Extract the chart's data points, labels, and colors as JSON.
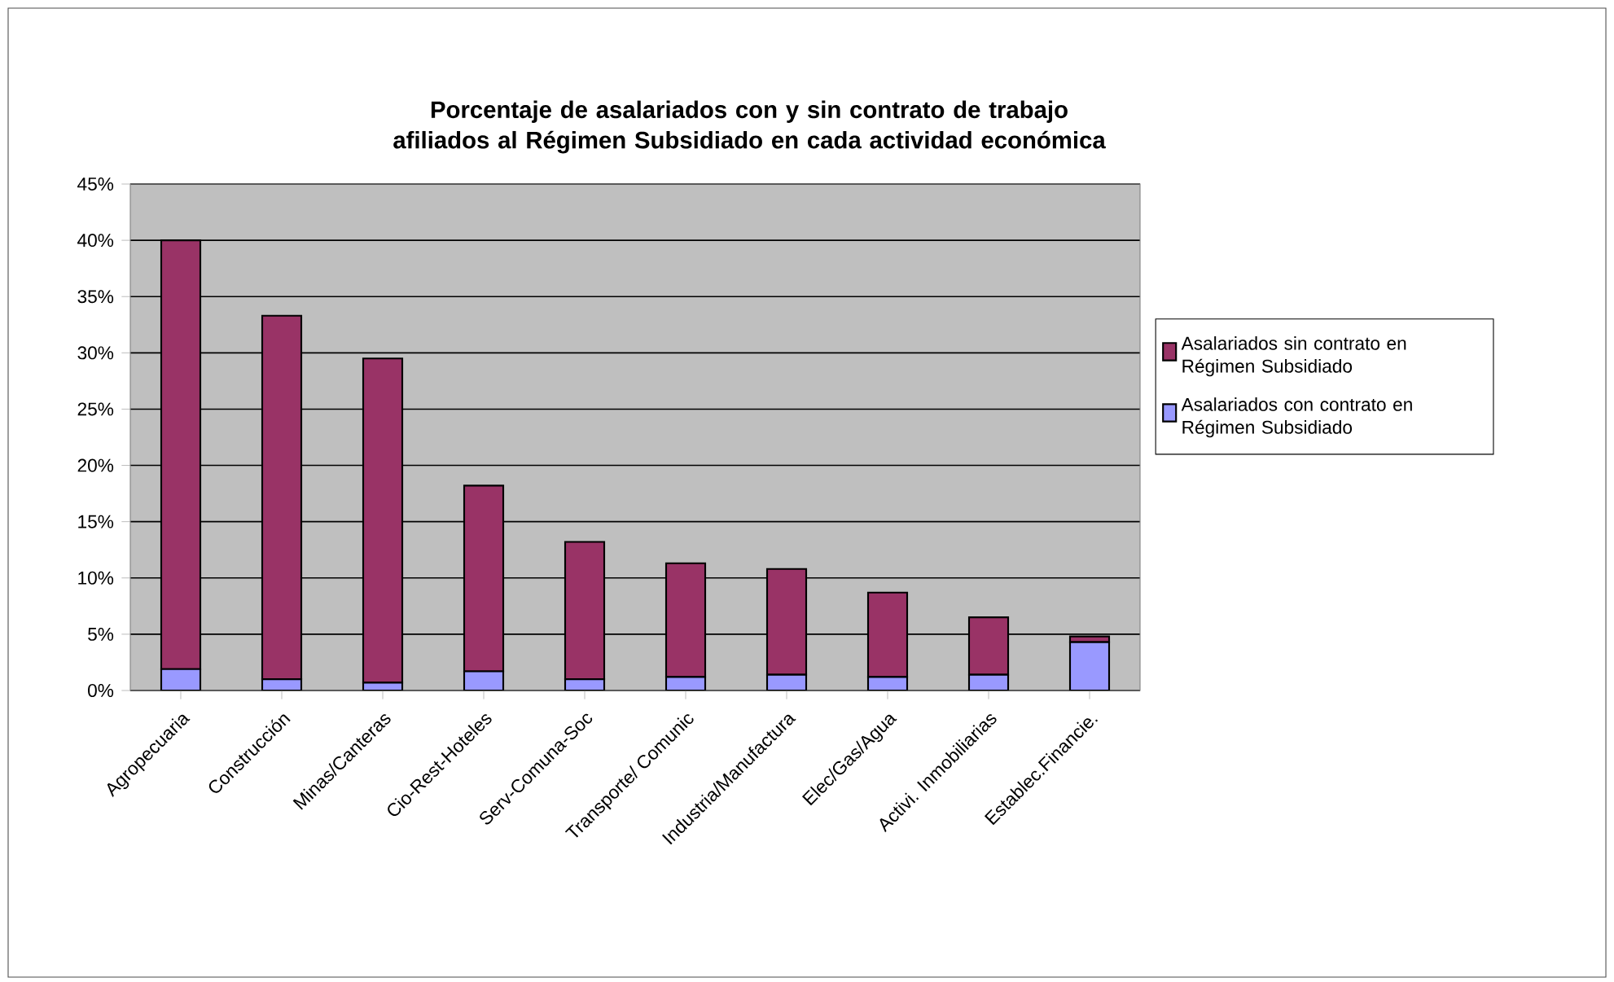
{
  "chart_data": {
    "type": "bar",
    "stacked": true,
    "title": "Porcentaje de asalariados con y sin contrato de trabajo afiliados al Régimen Subsidiado en cada actividad económica",
    "categories": [
      "Agropecuaria",
      "Construcción",
      "Minas/Canteras",
      "Cio-Rest-Hoteles",
      "Serv-Comuna-Soc",
      "Transporte/ Comunic",
      "Industria/Manufactura",
      "Elec/Gas/Agua",
      "Activi. Inmobiliarias",
      "Establec.Financie."
    ],
    "series": [
      {
        "name": "Asalariados con contrato en Régimen Subsidiado",
        "color": "#9999ff",
        "values": [
          1.9,
          1.0,
          0.7,
          1.7,
          1.0,
          1.2,
          1.4,
          1.2,
          1.4,
          4.3
        ]
      },
      {
        "name": "Asalariados sin contrato en Régimen Subsidiado",
        "color": "#993366",
        "values": [
          38.1,
          32.3,
          28.8,
          16.5,
          12.2,
          10.1,
          9.4,
          7.5,
          5.1,
          0.5
        ]
      }
    ],
    "ylim": [
      0,
      45
    ],
    "yticks": [
      {
        "value": 0,
        "label": "0%"
      },
      {
        "value": 5,
        "label": "5%"
      },
      {
        "value": 10,
        "label": "10%"
      },
      {
        "value": 15,
        "label": "15%"
      },
      {
        "value": 20,
        "label": "20%"
      },
      {
        "value": 25,
        "label": "25%"
      },
      {
        "value": 30,
        "label": "30%"
      },
      {
        "value": 35,
        "label": "35%"
      },
      {
        "value": 40,
        "label": "40%"
      },
      {
        "value": 45,
        "label": "45%"
      }
    ],
    "grid": "y",
    "legend": "right"
  }
}
